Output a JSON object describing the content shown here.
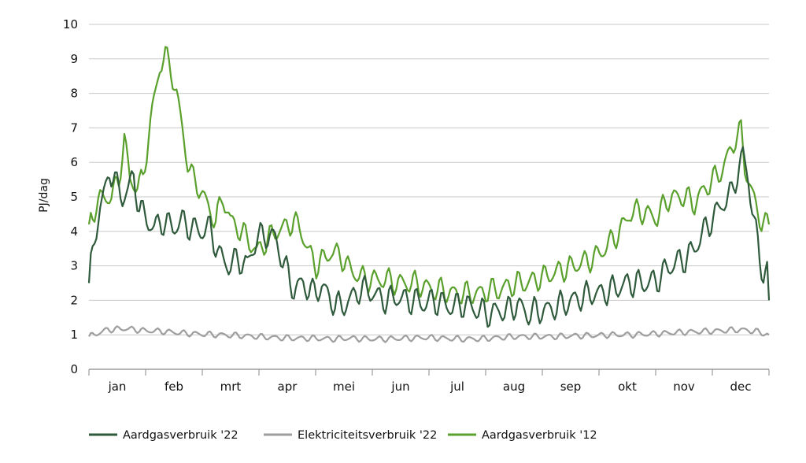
{
  "chart_data": {
    "type": "line",
    "title": "",
    "xlabel": "",
    "ylabel": "PJ/dag",
    "ylim": [
      0,
      10
    ],
    "yticks": [
      "0",
      "1",
      "2",
      "3",
      "4",
      "5",
      "6",
      "7",
      "8",
      "9",
      "10"
    ],
    "categories": [
      "jan",
      "feb",
      "mrt",
      "apr",
      "mei",
      "jun",
      "jul",
      "aug",
      "sep",
      "okt",
      "nov",
      "dec"
    ],
    "grid": "horizontal",
    "legend_position": "bottom",
    "colors": {
      "gas22": "#2f5a3c",
      "elec22": "#9e9e9e",
      "gas12": "#5aa02c",
      "grid": "#c8c8c8",
      "axis": "#888888"
    },
    "series": [
      {
        "name": "Aardgasverbruik '22",
        "key": "gas22",
        "anchors": [
          [
            0,
            2.5
          ],
          [
            3,
            3.8
          ],
          [
            6,
            4.7
          ],
          [
            9,
            5.2
          ],
          [
            11,
            5.8
          ],
          [
            13,
            5.6
          ],
          [
            15,
            5.3
          ],
          [
            18,
            5.0
          ],
          [
            21,
            5.2
          ],
          [
            24,
            5.6
          ],
          [
            27,
            4.7
          ],
          [
            30,
            4.4
          ],
          [
            35,
            4.1
          ],
          [
            40,
            4.3
          ],
          [
            45,
            4.1
          ],
          [
            50,
            4.3
          ],
          [
            55,
            4.1
          ],
          [
            60,
            4.0
          ],
          [
            65,
            4.1
          ],
          [
            70,
            3.3
          ],
          [
            75,
            3.0
          ],
          [
            80,
            3.2
          ],
          [
            85,
            3.0
          ],
          [
            90,
            3.8
          ],
          [
            95,
            3.9
          ],
          [
            100,
            3.8
          ],
          [
            105,
            3.0
          ],
          [
            110,
            2.3
          ],
          [
            115,
            2.5
          ],
          [
            120,
            2.2
          ],
          [
            125,
            2.4
          ],
          [
            130,
            2.0
          ],
          [
            135,
            1.8
          ],
          [
            140,
            2.0
          ],
          [
            145,
            2.3
          ],
          [
            150,
            2.3
          ],
          [
            155,
            2.1
          ],
          [
            160,
            2.0
          ],
          [
            165,
            2.1
          ],
          [
            170,
            2.0
          ],
          [
            175,
            2.0
          ],
          [
            180,
            1.9
          ],
          [
            185,
            2.0
          ],
          [
            190,
            1.9
          ],
          [
            195,
            1.8
          ],
          [
            200,
            1.9
          ],
          [
            205,
            1.8
          ],
          [
            210,
            1.7
          ],
          [
            215,
            1.6
          ],
          [
            220,
            1.7
          ],
          [
            225,
            1.7
          ],
          [
            230,
            1.9
          ],
          [
            235,
            1.6
          ],
          [
            240,
            1.7
          ],
          [
            245,
            1.7
          ],
          [
            250,
            1.8
          ],
          [
            255,
            1.9
          ],
          [
            260,
            2.0
          ],
          [
            265,
            2.1
          ],
          [
            270,
            2.2
          ],
          [
            275,
            2.2
          ],
          [
            280,
            2.3
          ],
          [
            285,
            2.4
          ],
          [
            290,
            2.5
          ],
          [
            295,
            2.5
          ],
          [
            300,
            2.5
          ],
          [
            305,
            2.6
          ],
          [
            310,
            2.9
          ],
          [
            315,
            3.1
          ],
          [
            320,
            3.2
          ],
          [
            325,
            3.5
          ],
          [
            330,
            4.0
          ],
          [
            335,
            4.4
          ],
          [
            340,
            4.8
          ],
          [
            345,
            5.1
          ],
          [
            348,
            5.7
          ],
          [
            351,
            6.2
          ],
          [
            354,
            5.5
          ],
          [
            357,
            4.3
          ],
          [
            360,
            3.2
          ],
          [
            362,
            2.8
          ],
          [
            364,
            2.9
          ],
          [
            365,
            2.0
          ]
        ]
      },
      {
        "name": "Elektriciteitsverbruik '22",
        "key": "elec22",
        "anchors": [
          [
            0,
            0.95
          ],
          [
            10,
            1.15
          ],
          [
            20,
            1.18
          ],
          [
            30,
            1.12
          ],
          [
            40,
            1.1
          ],
          [
            50,
            1.05
          ],
          [
            60,
            1.02
          ],
          [
            70,
            1.0
          ],
          [
            80,
            0.98
          ],
          [
            90,
            0.95
          ],
          [
            100,
            0.92
          ],
          [
            110,
            0.9
          ],
          [
            120,
            0.9
          ],
          [
            130,
            0.88
          ],
          [
            140,
            0.9
          ],
          [
            150,
            0.88
          ],
          [
            160,
            0.88
          ],
          [
            170,
            0.9
          ],
          [
            180,
            0.92
          ],
          [
            190,
            0.9
          ],
          [
            200,
            0.88
          ],
          [
            210,
            0.88
          ],
          [
            220,
            0.92
          ],
          [
            230,
            0.95
          ],
          [
            240,
            0.95
          ],
          [
            250,
            0.95
          ],
          [
            260,
            0.97
          ],
          [
            270,
            0.98
          ],
          [
            280,
            1.0
          ],
          [
            290,
            1.0
          ],
          [
            300,
            1.02
          ],
          [
            310,
            1.05
          ],
          [
            320,
            1.08
          ],
          [
            330,
            1.1
          ],
          [
            340,
            1.12
          ],
          [
            350,
            1.15
          ],
          [
            358,
            1.1
          ],
          [
            365,
            1.0
          ]
        ]
      },
      {
        "name": "Aardgasverbruik '12",
        "key": "gas12",
        "anchors": [
          [
            0,
            4.2
          ],
          [
            4,
            4.8
          ],
          [
            8,
            5.0
          ],
          [
            12,
            5.0
          ],
          [
            16,
            5.5
          ],
          [
            19,
            6.7
          ],
          [
            22,
            5.5
          ],
          [
            26,
            5.3
          ],
          [
            29,
            5.5
          ],
          [
            32,
            6.8
          ],
          [
            35,
            7.8
          ],
          [
            38,
            8.8
          ],
          [
            41,
            9.1
          ],
          [
            44,
            8.7
          ],
          [
            47,
            8.0
          ],
          [
            50,
            7.0
          ],
          [
            53,
            6.0
          ],
          [
            56,
            5.5
          ],
          [
            60,
            5.2
          ],
          [
            64,
            4.7
          ],
          [
            68,
            4.3
          ],
          [
            72,
            5.0
          ],
          [
            76,
            4.3
          ],
          [
            80,
            4.1
          ],
          [
            85,
            3.8
          ],
          [
            90,
            3.4
          ],
          [
            95,
            3.7
          ],
          [
            100,
            4.0
          ],
          [
            105,
            4.1
          ],
          [
            110,
            4.3
          ],
          [
            114,
            4.0
          ],
          [
            118,
            3.4
          ],
          [
            122,
            3.0
          ],
          [
            126,
            3.2
          ],
          [
            130,
            3.4
          ],
          [
            135,
            3.3
          ],
          [
            140,
            2.9
          ],
          [
            145,
            2.7
          ],
          [
            150,
            2.6
          ],
          [
            155,
            2.6
          ],
          [
            160,
            2.6
          ],
          [
            165,
            2.5
          ],
          [
            170,
            2.5
          ],
          [
            175,
            2.5
          ],
          [
            180,
            2.4
          ],
          [
            185,
            2.3
          ],
          [
            190,
            2.3
          ],
          [
            195,
            2.2
          ],
          [
            200,
            2.2
          ],
          [
            205,
            2.2
          ],
          [
            210,
            2.2
          ],
          [
            215,
            2.3
          ],
          [
            220,
            2.3
          ],
          [
            225,
            2.4
          ],
          [
            230,
            2.5
          ],
          [
            235,
            2.5
          ],
          [
            240,
            2.6
          ],
          [
            245,
            2.7
          ],
          [
            250,
            2.8
          ],
          [
            255,
            2.9
          ],
          [
            260,
            3.0
          ],
          [
            265,
            3.1
          ],
          [
            270,
            3.2
          ],
          [
            275,
            3.4
          ],
          [
            280,
            3.7
          ],
          [
            285,
            4.0
          ],
          [
            290,
            4.5
          ],
          [
            295,
            4.6
          ],
          [
            300,
            4.5
          ],
          [
            305,
            4.4
          ],
          [
            310,
            4.9
          ],
          [
            315,
            5.0
          ],
          [
            320,
            5.0
          ],
          [
            325,
            4.8
          ],
          [
            330,
            5.2
          ],
          [
            335,
            5.5
          ],
          [
            340,
            5.8
          ],
          [
            344,
            6.3
          ],
          [
            347,
            6.7
          ],
          [
            350,
            6.9
          ],
          [
            352,
            5.9
          ],
          [
            355,
            5.3
          ],
          [
            358,
            4.7
          ],
          [
            361,
            4.3
          ],
          [
            363,
            4.2
          ],
          [
            365,
            4.2
          ]
        ]
      }
    ]
  }
}
